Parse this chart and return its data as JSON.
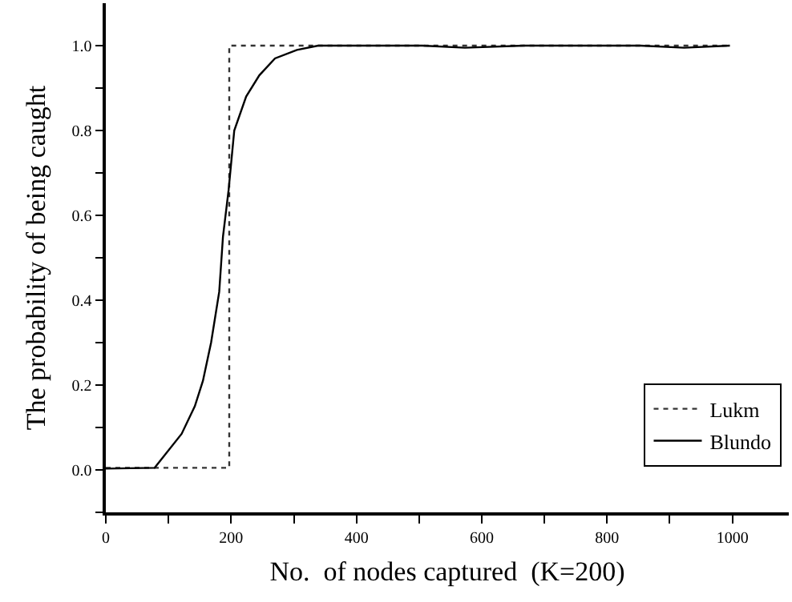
{
  "chart_data": {
    "type": "line",
    "xlabel": "No.  of nodes captured  (K=200)",
    "ylabel": "The probability of being caught",
    "series": [
      {
        "name": "Lukm",
        "color": "#333333",
        "line_style": "dotted",
        "x": [
          0,
          197,
          197,
          996
        ],
        "values": [
          0.005,
          0.005,
          1,
          1
        ]
      },
      {
        "name": "Blundo",
        "color": "#000000",
        "line_style": "solid",
        "x": [
          0,
          78,
          121,
          142,
          155,
          168,
          181,
          187,
          196,
          205,
          224,
          245,
          270,
          305,
          339,
          411,
          505,
          573,
          667,
          853,
          923,
          996
        ],
        "values": [
          0.003,
          0.005,
          0.085,
          0.15,
          0.21,
          0.3,
          0.42,
          0.55,
          0.66,
          0.8,
          0.88,
          0.93,
          0.97,
          0.99,
          1,
          1,
          1,
          0.995,
          1,
          1,
          0.995,
          1
        ]
      }
    ],
    "xlim": [
      0,
      1090
    ],
    "ylim": [
      -0.1,
      1.1
    ],
    "xticks": [
      0,
      {
        "value": 100,
        "label": null
      },
      200,
      {
        "value": 300,
        "label": null
      },
      400,
      {
        "value": 500,
        "label": null
      },
      600,
      {
        "value": 700,
        "label": null
      },
      800,
      {
        "value": 900,
        "label": null
      },
      1000
    ],
    "yticks": [
      {
        "value": -0.1,
        "label": null
      },
      {
        "value": 0,
        "label": "0.0"
      },
      {
        "value": 0.1,
        "label": null
      },
      {
        "value": 0.2,
        "label": "0.2"
      },
      {
        "value": 0.3,
        "label": null
      },
      {
        "value": 0.4,
        "label": "0.4"
      },
      {
        "value": 0.5,
        "label": null
      },
      {
        "value": 0.6,
        "label": "0.6"
      },
      {
        "value": 0.7,
        "label": null
      },
      {
        "value": 0.8,
        "label": "0.8"
      },
      {
        "value": 0.9,
        "label": null
      },
      {
        "value": 1,
        "label": "1.0"
      }
    ],
    "grid": false,
    "legend": "bottom right",
    "marker": "none"
  }
}
